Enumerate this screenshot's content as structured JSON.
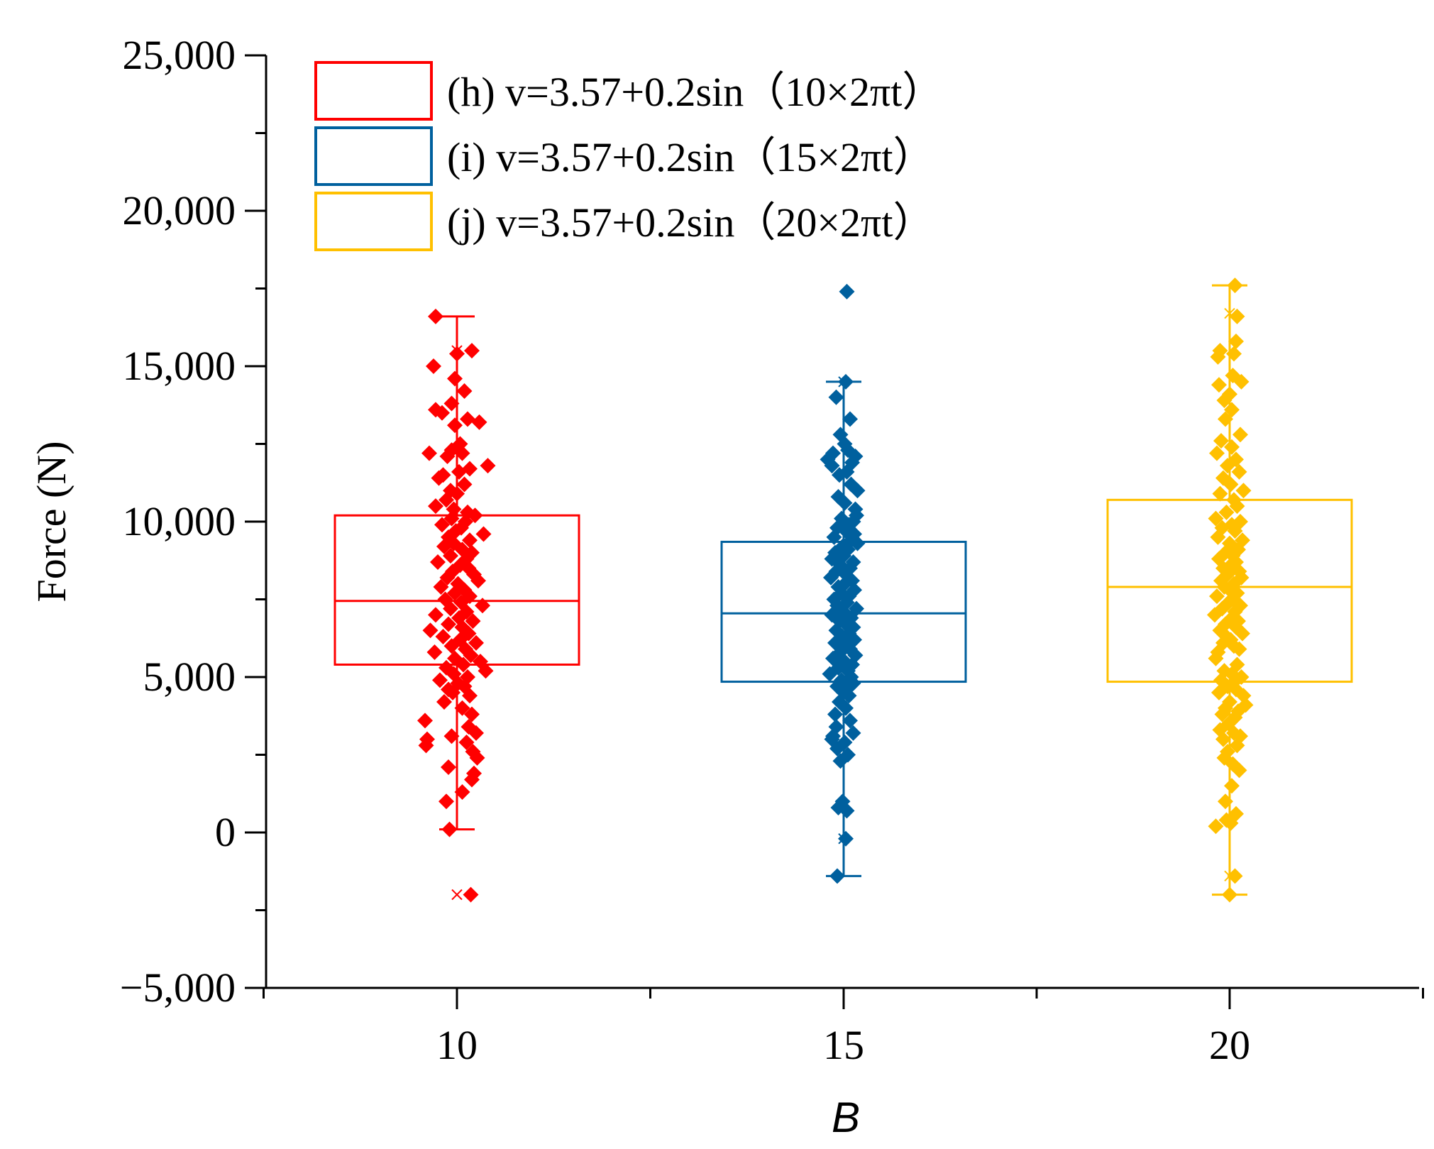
{
  "chart_data": {
    "type": "box",
    "xlabel": "B",
    "ylabel": "Force (N)",
    "ylim": [
      -5000,
      25000
    ],
    "yticks": [
      -5000,
      0,
      5000,
      10000,
      15000,
      20000,
      25000
    ],
    "ytick_labels": [
      "−5,000",
      "0",
      "5,000",
      "10,000",
      "15,000",
      "20,000",
      "25,000"
    ],
    "categories": [
      "10",
      "15",
      "20"
    ],
    "series": [
      {
        "name": "(h) v=3.57+0.2sin（10×2πt）",
        "category": "10",
        "color": "#ff0000",
        "box": {
          "q1": 5400,
          "median": 7450,
          "q3": 10200,
          "whisker_low": 100,
          "whisker_high": 16600,
          "min_mark": -2000,
          "max_mark": 15500
        },
        "points": [
          16600,
          15500,
          15400,
          15000,
          14600,
          14200,
          13800,
          13600,
          13500,
          13300,
          13200,
          13100,
          12500,
          12300,
          12200,
          12200,
          12100,
          11800,
          11700,
          11600,
          11500,
          11400,
          11200,
          11000,
          10900,
          10700,
          10500,
          10400,
          10300,
          10200,
          10100,
          10000,
          9900,
          9800,
          9700,
          9600,
          9500,
          9400,
          9300,
          9200,
          9100,
          9000,
          8900,
          8800,
          8700,
          8600,
          8500,
          8400,
          8300,
          8200,
          8100,
          8000,
          7900,
          7800,
          7700,
          7600,
          7500,
          7400,
          7300,
          7200,
          7100,
          7000,
          6900,
          6800,
          6700,
          6600,
          6500,
          6400,
          6300,
          6200,
          6100,
          6000,
          5900,
          5800,
          5700,
          5600,
          5500,
          5400,
          5300,
          5200,
          5100,
          5000,
          4900,
          4800,
          4700,
          4600,
          4500,
          4400,
          4200,
          4000,
          3800,
          3600,
          3400,
          3200,
          3100,
          3000,
          2900,
          2800,
          2600,
          2400,
          2100,
          1900,
          1700,
          1300,
          1000,
          100,
          -2000
        ],
        "jitter": [
          -0.2,
          0.14,
          0.0,
          -0.22,
          -0.02,
          0.07,
          -0.05,
          -0.2,
          -0.14,
          0.1,
          0.21,
          -0.02,
          0.03,
          -0.05,
          -0.26,
          0.05,
          -0.09,
          0.29,
          0.12,
          0.02,
          -0.13,
          -0.17,
          0.07,
          -0.06,
          0.0,
          -0.1,
          -0.2,
          -0.03,
          0.1,
          0.17,
          -0.05,
          0.08,
          -0.14,
          0.04,
          -0.01,
          0.25,
          -0.08,
          0.12,
          -0.03,
          -0.12,
          0.05,
          0.14,
          -0.06,
          0.09,
          -0.18,
          0.03,
          0.11,
          -0.04,
          0.16,
          -0.09,
          0.2,
          0.01,
          -0.15,
          0.07,
          -0.02,
          0.12,
          -0.11,
          0.04,
          0.24,
          -0.06,
          0.09,
          -0.2,
          0.02,
          0.15,
          -0.08,
          0.05,
          -0.25,
          0.11,
          -0.13,
          0.03,
          0.18,
          -0.05,
          0.08,
          -0.21,
          0.13,
          -0.02,
          0.22,
          0.06,
          -0.1,
          0.27,
          -0.03,
          0.1,
          -0.16,
          0.01,
          0.07,
          -0.08,
          -0.04,
          0.12,
          -0.12,
          0.05,
          0.14,
          -0.3,
          0.11,
          0.18,
          -0.05,
          -0.28,
          0.09,
          -0.29,
          0.15,
          0.19,
          -0.08,
          0.16,
          0.14,
          0.05,
          -0.1,
          -0.07,
          0.13
        ]
      },
      {
        "name": "(i) v=3.57+0.2sin（15×2πt）",
        "category": "15",
        "color": "#00609e",
        "box": {
          "q1": 4850,
          "median": 7050,
          "q3": 9350,
          "whisker_low": -1400,
          "whisker_high": 14500,
          "min_mark": -200,
          "max_mark": 14500
        },
        "points": [
          17400,
          14500,
          14000,
          13300,
          12800,
          12500,
          12300,
          12200,
          12100,
          12000,
          11900,
          11800,
          11600,
          11500,
          11200,
          11000,
          10800,
          10600,
          10400,
          10200,
          10100,
          10000,
          9900,
          9800,
          9700,
          9600,
          9500,
          9400,
          9300,
          9200,
          9100,
          9000,
          8900,
          8800,
          8700,
          8600,
          8500,
          8400,
          8300,
          8200,
          8100,
          8000,
          7900,
          7800,
          7700,
          7600,
          7500,
          7400,
          7300,
          7200,
          7100,
          7000,
          6900,
          6800,
          6700,
          6600,
          6500,
          6400,
          6300,
          6200,
          6100,
          6000,
          5900,
          5800,
          5700,
          5600,
          5500,
          5400,
          5300,
          5200,
          5100,
          5000,
          4900,
          4800,
          4700,
          4600,
          4500,
          4400,
          4200,
          4000,
          3800,
          3600,
          3400,
          3200,
          3100,
          3000,
          2900,
          2700,
          2500,
          2300,
          1000,
          800,
          700,
          -200,
          -1400
        ],
        "jitter": [
          0.03,
          0.02,
          -0.07,
          0.06,
          -0.03,
          0.01,
          0.04,
          -0.1,
          0.11,
          -0.15,
          0.08,
          -0.11,
          0.03,
          -0.04,
          0.07,
          0.13,
          -0.05,
          0.01,
          0.11,
          0.12,
          -0.02,
          0.09,
          0.05,
          -0.06,
          0.02,
          0.1,
          -0.09,
          0.07,
          0.13,
          -0.01,
          0.04,
          -0.08,
          0.0,
          -0.11,
          0.09,
          -0.03,
          0.06,
          -0.07,
          0.02,
          -0.12,
          0.08,
          0.01,
          -0.05,
          0.1,
          -0.02,
          0.05,
          -0.09,
          0.03,
          -0.06,
          0.12,
          0.0,
          -0.11,
          0.07,
          -0.04,
          0.02,
          0.09,
          -0.07,
          0.05,
          -0.01,
          0.1,
          -0.08,
          0.03,
          0.06,
          -0.03,
          0.11,
          -0.1,
          0.01,
          0.08,
          -0.05,
          0.04,
          -0.13,
          0.07,
          -0.02,
          0.09,
          -0.06,
          0.03,
          0.0,
          0.05,
          -0.04,
          0.02,
          -0.08,
          0.06,
          -0.07,
          0.09,
          -0.1,
          -0.11,
          0.01,
          -0.06,
          0.04,
          -0.03,
          -0.01,
          -0.05,
          0.03,
          0.02,
          -0.06
        ]
      },
      {
        "name": "(j) v=3.57+0.2sin（20×2πt）",
        "category": "20",
        "color": "#ffc000",
        "box": {
          "q1": 4850,
          "median": 7900,
          "q3": 10700,
          "whisker_low": -2000,
          "whisker_high": 17600,
          "min_mark": -1400,
          "max_mark": 16700
        },
        "points": [
          17600,
          16600,
          15800,
          15500,
          15400,
          15300,
          14700,
          14500,
          14400,
          14100,
          13900,
          13600,
          13300,
          12800,
          12600,
          12400,
          12200,
          12000,
          11800,
          11600,
          11400,
          11200,
          11000,
          10900,
          10700,
          10500,
          10300,
          10100,
          10000,
          9900,
          9800,
          9700,
          9500,
          9400,
          9300,
          9100,
          9000,
          8900,
          8800,
          8700,
          8600,
          8500,
          8400,
          8300,
          8200,
          8100,
          8000,
          7900,
          7800,
          7700,
          7600,
          7500,
          7400,
          7300,
          7200,
          7100,
          7000,
          6900,
          6800,
          6700,
          6600,
          6500,
          6400,
          6300,
          6200,
          6100,
          6000,
          5900,
          5800,
          5600,
          5400,
          5200,
          5100,
          5000,
          4900,
          4800,
          4700,
          4600,
          4500,
          4400,
          4200,
          4100,
          4000,
          3900,
          3800,
          3700,
          3500,
          3300,
          3200,
          3100,
          3000,
          2800,
          2600,
          2400,
          2200,
          2000,
          1500,
          1000,
          600,
          400,
          300,
          200,
          -1400,
          -2000
        ],
        "jitter": [
          0.05,
          0.07,
          0.06,
          -0.09,
          0.04,
          -0.11,
          0.03,
          0.11,
          -0.1,
          0.0,
          -0.05,
          0.02,
          -0.04,
          0.1,
          -0.08,
          0.02,
          -0.12,
          0.06,
          -0.02,
          0.09,
          -0.06,
          0.01,
          0.13,
          -0.09,
          0.04,
          0.07,
          -0.03,
          -0.13,
          0.1,
          0.02,
          -0.07,
          0.05,
          -0.11,
          0.12,
          0.0,
          0.08,
          -0.04,
          0.03,
          -0.1,
          0.06,
          0.01,
          -0.06,
          0.09,
          -0.02,
          0.11,
          -0.08,
          0.04,
          -0.05,
          0.0,
          0.07,
          -0.12,
          0.03,
          -0.01,
          0.1,
          -0.07,
          0.05,
          -0.14,
          0.02,
          0.08,
          -0.04,
          0.06,
          -0.09,
          0.12,
          -0.03,
          0.01,
          -0.06,
          0.04,
          0.09,
          -0.11,
          -0.13,
          0.07,
          -0.05,
          0.02,
          0.11,
          -0.08,
          0.03,
          -0.02,
          0.06,
          -0.1,
          0.13,
          0.0,
          0.15,
          -0.04,
          0.08,
          -0.07,
          0.05,
          -0.01,
          -0.09,
          0.04,
          0.1,
          -0.06,
          0.07,
          -0.02,
          -0.05,
          0.03,
          0.09,
          0.02,
          -0.04,
          0.06,
          -0.03,
          0.01,
          -0.13,
          0.05,
          0.0
        ]
      }
    ]
  }
}
